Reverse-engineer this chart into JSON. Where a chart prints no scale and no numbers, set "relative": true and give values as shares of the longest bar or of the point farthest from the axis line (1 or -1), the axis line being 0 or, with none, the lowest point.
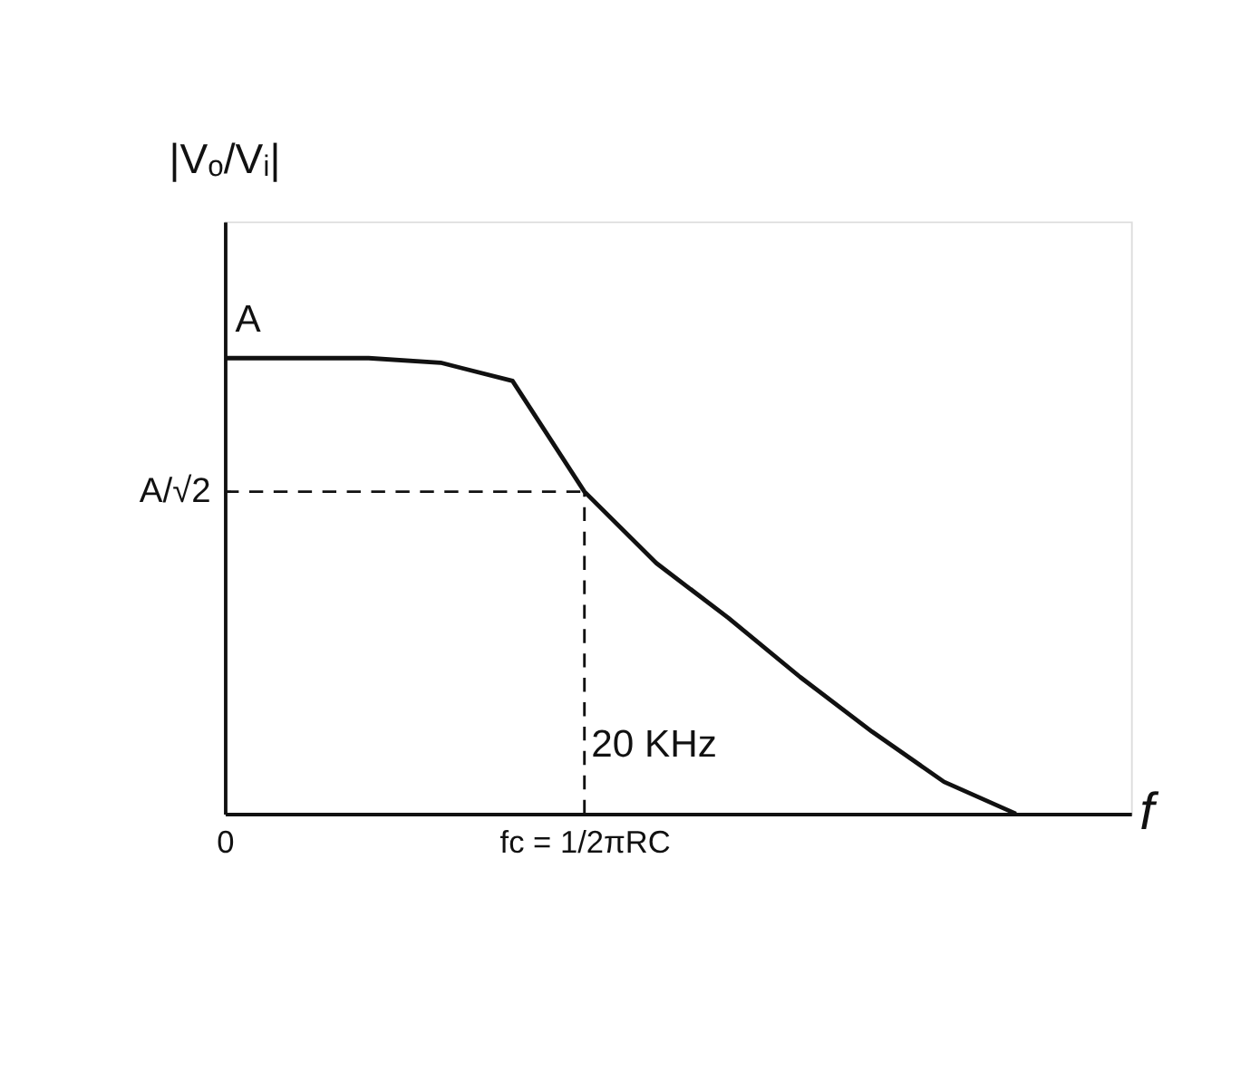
{
  "chart_data": {
    "type": "line",
    "relative": true,
    "xlabel": "f",
    "ylabel": "|Vₒ/Vᵢ|",
    "categories": [
      "0",
      null,
      null,
      null,
      null,
      "fc = 1/2πRC",
      null,
      null,
      null,
      null,
      null,
      null,
      null
    ],
    "series": [
      {
        "color": "#111111",
        "values": [
          1,
          1,
          1,
          0.99,
          0.95,
          0.707,
          0.55,
          0.43,
          0.3,
          0.18,
          0.07,
          0,
          null
        ]
      }
    ],
    "ref_lines": [
      {
        "axis": "y",
        "value": 0.707,
        "label": "A/√2",
        "line_style": "dashed",
        "color": "#111111"
      },
      {
        "axis": "x",
        "value": "fc = 1/2πRC",
        "line_style": "dashed",
        "color": "#111111"
      }
    ],
    "annotations": [
      {
        "text": "A",
        "x": "0",
        "y": 1
      },
      "20 KHz"
    ],
    "grid": false,
    "marker": "none",
    "line_style": "solid"
  }
}
